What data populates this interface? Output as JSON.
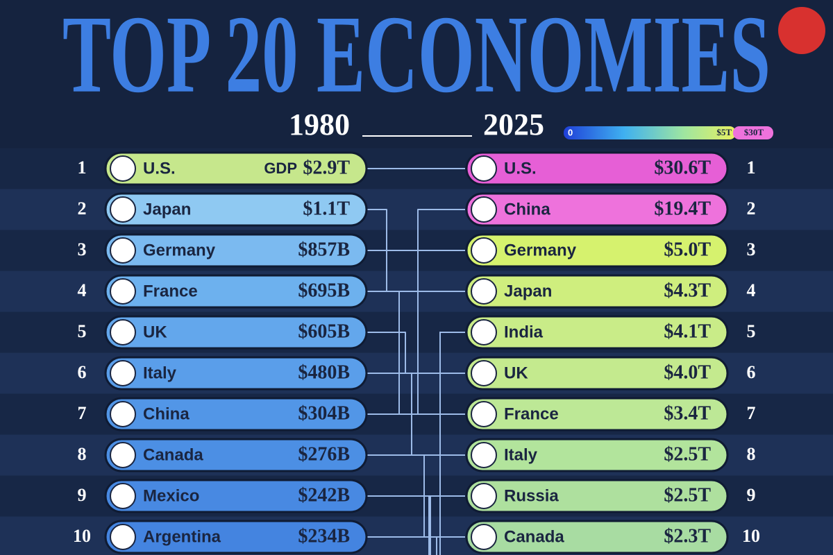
{
  "header": {
    "title": "TOP 20 ECONOMIES",
    "year_from": "1980",
    "year_to": "2025",
    "gdp_label": "GDP",
    "scale": {
      "min": "0",
      "mid": "$5T",
      "max": "$30T"
    }
  },
  "rankings_1980": [
    {
      "rank": 1,
      "country": "U.S.",
      "gdp": "$2.9T",
      "color": "#c6e78c"
    },
    {
      "rank": 2,
      "country": "Japan",
      "gdp": "$1.1T",
      "color": "#8fc9f2"
    },
    {
      "rank": 3,
      "country": "Germany",
      "gdp": "$857B",
      "color": "#7bbaf0"
    },
    {
      "rank": 4,
      "country": "France",
      "gdp": "$695B",
      "color": "#6db1ee"
    },
    {
      "rank": 5,
      "country": "UK",
      "gdp": "$605B",
      "color": "#63a7ec"
    },
    {
      "rank": 6,
      "country": "Italy",
      "gdp": "$480B",
      "color": "#5a9eea"
    },
    {
      "rank": 7,
      "country": "China",
      "gdp": "$304B",
      "color": "#5296e7"
    },
    {
      "rank": 8,
      "country": "Canada",
      "gdp": "$276B",
      "color": "#4c8fe4"
    },
    {
      "rank": 9,
      "country": "Mexico",
      "gdp": "$242B",
      "color": "#4889e2"
    },
    {
      "rank": 10,
      "country": "Argentina",
      "gdp": "$234B",
      "color": "#4484e0"
    }
  ],
  "rankings_2025": [
    {
      "rank": 1,
      "country": "U.S.",
      "gdp": "$30.6T",
      "color": "#e65fd6"
    },
    {
      "rank": 2,
      "country": "China",
      "gdp": "$19.4T",
      "color": "#ee72dc"
    },
    {
      "rank": 3,
      "country": "Germany",
      "gdp": "$5.0T",
      "color": "#d6f26e"
    },
    {
      "rank": 4,
      "country": "Japan",
      "gdp": "$4.3T",
      "color": "#cfee7e"
    },
    {
      "rank": 5,
      "country": "India",
      "gdp": "$4.1T",
      "color": "#c9ec88"
    },
    {
      "rank": 6,
      "country": "UK",
      "gdp": "$4.0T",
      "color": "#c4ea8e"
    },
    {
      "rank": 7,
      "country": "France",
      "gdp": "$3.4T",
      "color": "#bde896"
    },
    {
      "rank": 8,
      "country": "Italy",
      "gdp": "$2.5T",
      "color": "#b2e49c"
    },
    {
      "rank": 9,
      "country": "Russia",
      "gdp": "$2.5T",
      "color": "#aee09e"
    },
    {
      "rank": 10,
      "country": "Canada",
      "gdp": "$2.3T",
      "color": "#a8dca2"
    }
  ]
}
